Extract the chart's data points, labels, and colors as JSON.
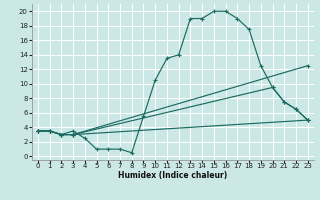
{
  "xlabel": "Humidex (Indice chaleur)",
  "bg_color": "#cce8e6",
  "grid_color": "#ffffff",
  "line_color": "#1a6b62",
  "xlim": [
    -0.5,
    23.5
  ],
  "ylim": [
    -0.5,
    21.0
  ],
  "xticks": [
    0,
    1,
    2,
    3,
    4,
    5,
    6,
    7,
    8,
    9,
    10,
    11,
    12,
    13,
    14,
    15,
    16,
    17,
    18,
    19,
    20,
    21,
    22,
    23
  ],
  "yticks": [
    0,
    2,
    4,
    6,
    8,
    10,
    12,
    14,
    16,
    18,
    20
  ],
  "series": [
    {
      "x": [
        0,
        1,
        2,
        3,
        4,
        5,
        6,
        7,
        8,
        9,
        10,
        11,
        12,
        13,
        14,
        15,
        16,
        17,
        18,
        19,
        20,
        21,
        22,
        23
      ],
      "y": [
        3.5,
        3.5,
        3.0,
        3.5,
        2.5,
        1.0,
        1.0,
        1.0,
        0.5,
        5.5,
        10.5,
        13.5,
        14.0,
        19.0,
        19.0,
        20.0,
        20.0,
        19.0,
        17.5,
        12.5,
        9.5,
        7.5,
        6.5,
        5.0
      ]
    },
    {
      "x": [
        0,
        1,
        2,
        3,
        23
      ],
      "y": [
        3.5,
        3.5,
        3.0,
        3.0,
        12.5
      ]
    },
    {
      "x": [
        0,
        1,
        2,
        3,
        20,
        21,
        22,
        23
      ],
      "y": [
        3.5,
        3.5,
        3.0,
        3.0,
        9.5,
        7.5,
        6.5,
        5.0
      ]
    },
    {
      "x": [
        0,
        1,
        2,
        3,
        23
      ],
      "y": [
        3.5,
        3.5,
        3.0,
        3.0,
        5.0
      ]
    }
  ]
}
